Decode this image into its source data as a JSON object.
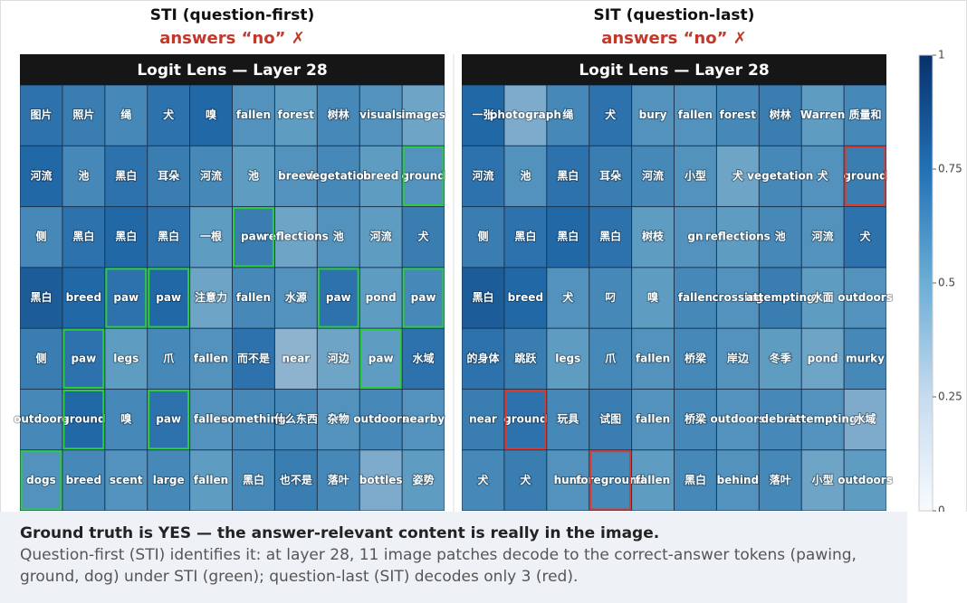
{
  "chart_data": {
    "type": "heatmap-panels",
    "colormap": [
      "#f7fbff",
      "#c6dbef",
      "#6baed6",
      "#2171b5",
      "#08306b"
    ],
    "clim": [
      0,
      1
    ],
    "cticks": [
      0,
      0.25,
      0.5,
      0.75,
      1
    ],
    "panels": [
      {
        "title": "STI (question-first)",
        "verdict": "answers “no”  ✗",
        "header": "Logit Lens — Layer 28",
        "hit_color": "#2ecc40",
        "tokens": [
          [
            "图片",
            "照片",
            "绳",
            "犬",
            "嗅",
            "fallen",
            "forest",
            "树林",
            "visuals",
            "images"
          ],
          [
            "河流",
            "池",
            "黑白",
            "耳朵",
            "河流",
            "池",
            "breed",
            "vegetation",
            "breed",
            "ground"
          ],
          [
            "侧",
            "黑白",
            "黑白",
            "黑白",
            "一根",
            "paw",
            "reflections",
            "池",
            "河流",
            "犬"
          ],
          [
            "黑白",
            "breed",
            "paw",
            "paw",
            "注意力",
            "fallen",
            "水源",
            "paw",
            "pond",
            "paw"
          ],
          [
            "侧",
            "paw",
            "legs",
            "爪",
            "fallen",
            "而不是",
            "near",
            "河边",
            "paw",
            "水域"
          ],
          [
            "outdoors",
            "ground",
            "嗅",
            "paw",
            "fallen",
            "something",
            "什么东西",
            "杂物",
            "outdoors",
            "nearby"
          ],
          [
            "dogs",
            "breed",
            "scent",
            "large",
            "fallen",
            "黑白",
            "也不是",
            "落叶",
            "bottles",
            "姿势"
          ]
        ],
        "values": [
          [
            0.7,
            0.65,
            0.6,
            0.7,
            0.75,
            0.55,
            0.5,
            0.6,
            0.55,
            0.45
          ],
          [
            0.75,
            0.6,
            0.7,
            0.65,
            0.6,
            0.5,
            0.55,
            0.6,
            0.5,
            0.55
          ],
          [
            0.6,
            0.7,
            0.75,
            0.7,
            0.5,
            0.65,
            0.45,
            0.55,
            0.5,
            0.65
          ],
          [
            0.8,
            0.75,
            0.7,
            0.75,
            0.45,
            0.6,
            0.55,
            0.7,
            0.5,
            0.6
          ],
          [
            0.65,
            0.7,
            0.5,
            0.6,
            0.55,
            0.7,
            0.35,
            0.45,
            0.5,
            0.7
          ],
          [
            0.6,
            0.75,
            0.6,
            0.7,
            0.55,
            0.6,
            0.6,
            0.55,
            0.6,
            0.55
          ],
          [
            0.55,
            0.6,
            0.55,
            0.6,
            0.5,
            0.6,
            0.65,
            0.6,
            0.4,
            0.5
          ]
        ],
        "hits": [
          [
            false,
            false,
            false,
            false,
            false,
            false,
            false,
            false,
            false,
            false
          ],
          [
            false,
            false,
            false,
            false,
            false,
            false,
            false,
            false,
            false,
            true
          ],
          [
            false,
            false,
            false,
            false,
            false,
            true,
            false,
            false,
            false,
            false
          ],
          [
            false,
            false,
            true,
            true,
            false,
            false,
            false,
            true,
            false,
            true
          ],
          [
            false,
            true,
            false,
            false,
            false,
            false,
            false,
            false,
            true,
            false
          ],
          [
            false,
            true,
            false,
            true,
            false,
            false,
            false,
            false,
            false,
            false
          ],
          [
            true,
            false,
            false,
            false,
            false,
            false,
            false,
            false,
            false,
            false
          ]
        ]
      },
      {
        "title": "SIT (question-last)",
        "verdict": "answers “no”  ✗",
        "header": "Logit Lens — Layer 28",
        "hit_color": "#e0392b",
        "tokens": [
          [
            "一张",
            "photograph",
            "绳",
            "犬",
            "bury",
            "fallen",
            "forest",
            "树林",
            "Warren",
            "质量和"
          ],
          [
            "河流",
            "池",
            "黑白",
            "耳朵",
            "河流",
            "小型",
            "犬",
            "vegetation",
            "犬",
            "ground"
          ],
          [
            "侧",
            "黑白",
            "黑白",
            "黑白",
            "树枝",
            "gn",
            "reflections",
            "池",
            "河流",
            "犬"
          ],
          [
            "黑白",
            "breed",
            "犬",
            "叼",
            "嗅",
            "fallen",
            "crossing",
            "attempting",
            "水面",
            "outdoors"
          ],
          [
            "的身体",
            "跳跃",
            "legs",
            "爪",
            "fallen",
            "桥梁",
            "岸边",
            "冬季",
            "pond",
            "murky"
          ],
          [
            "near",
            "ground",
            "玩具",
            "试图",
            "fallen",
            "桥梁",
            "outdoors",
            "debris",
            "attempting",
            "水域"
          ],
          [
            "犬",
            "犬",
            "hunt",
            "foreground",
            "fallen",
            "黑白",
            "behind",
            "落叶",
            "小型",
            "outdoors"
          ]
        ],
        "values": [
          [
            0.75,
            0.4,
            0.6,
            0.7,
            0.55,
            0.55,
            0.6,
            0.65,
            0.5,
            0.6
          ],
          [
            0.7,
            0.55,
            0.7,
            0.65,
            0.6,
            0.55,
            0.45,
            0.6,
            0.55,
            0.65
          ],
          [
            0.65,
            0.7,
            0.75,
            0.7,
            0.5,
            0.55,
            0.5,
            0.6,
            0.55,
            0.7
          ],
          [
            0.8,
            0.75,
            0.55,
            0.6,
            0.5,
            0.6,
            0.55,
            0.65,
            0.5,
            0.55
          ],
          [
            0.7,
            0.65,
            0.5,
            0.6,
            0.55,
            0.6,
            0.55,
            0.5,
            0.45,
            0.6
          ],
          [
            0.65,
            0.7,
            0.6,
            0.65,
            0.55,
            0.6,
            0.55,
            0.6,
            0.55,
            0.4
          ],
          [
            0.6,
            0.65,
            0.55,
            0.6,
            0.5,
            0.6,
            0.55,
            0.6,
            0.45,
            0.5
          ]
        ],
        "hits": [
          [
            false,
            false,
            false,
            false,
            false,
            false,
            false,
            false,
            false,
            false
          ],
          [
            false,
            false,
            false,
            false,
            false,
            false,
            false,
            false,
            false,
            true
          ],
          [
            false,
            false,
            false,
            false,
            false,
            false,
            false,
            false,
            false,
            false
          ],
          [
            false,
            false,
            false,
            false,
            false,
            false,
            false,
            false,
            false,
            false
          ],
          [
            false,
            false,
            false,
            false,
            false,
            false,
            false,
            false,
            false,
            false
          ],
          [
            false,
            true,
            false,
            false,
            false,
            false,
            false,
            false,
            false,
            false
          ],
          [
            false,
            false,
            false,
            true,
            false,
            false,
            false,
            false,
            false,
            false
          ]
        ]
      }
    ]
  },
  "caption": {
    "heading": "Ground truth is YES — the answer-relevant content is really in the image.",
    "body": "Question-first (STI) identifies it: at layer 28, 11 image patches decode to the correct-answer tokens (pawing, ground, dog) under STI (green); question-last (SIT) decodes only 3 (red)."
  }
}
